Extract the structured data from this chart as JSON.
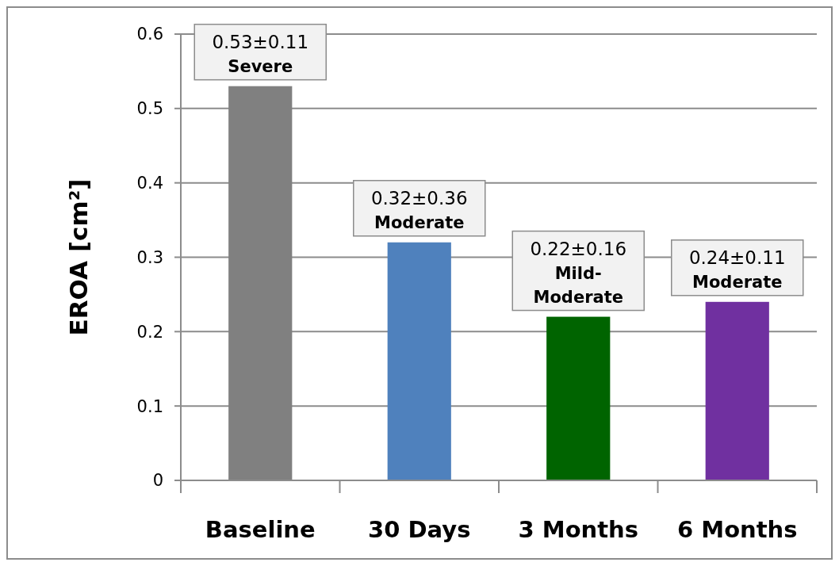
{
  "chart_data": {
    "type": "bar",
    "ylabel": "EROA [cm²]",
    "categories": [
      "Baseline",
      "30 Days",
      "3 Months",
      "6 Months"
    ],
    "values": [
      0.53,
      0.32,
      0.22,
      0.24
    ],
    "colors": [
      "#808080",
      "#4f81bd",
      "#006400",
      "#7030a0"
    ],
    "value_labels": [
      "0.53±0.11\nSevere",
      "0.32±0.36\nModerate",
      "0.22±0.16\nMild-\nModerate",
      "0.24±0.11\nModerate"
    ],
    "ylim": [
      0,
      0.6
    ],
    "yticks": [
      0,
      0.1,
      0.2,
      0.3,
      0.4,
      0.5,
      0.6
    ],
    "grid": "y"
  }
}
